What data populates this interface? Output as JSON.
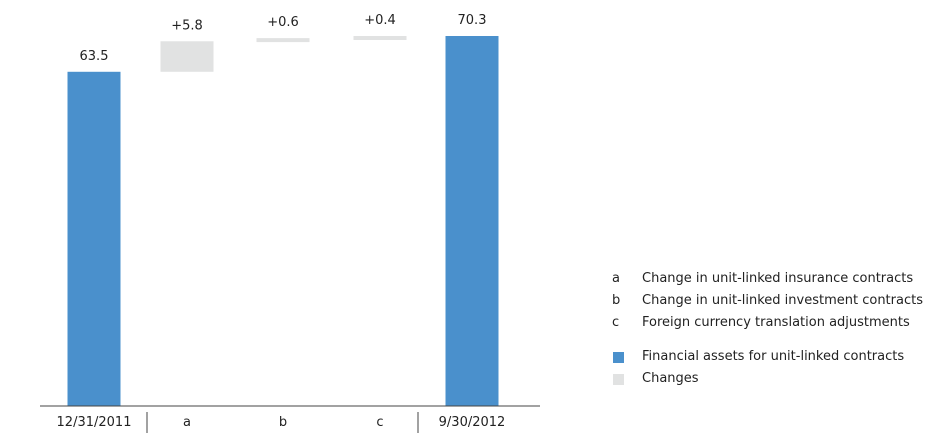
{
  "chart_data": {
    "type": "waterfall",
    "categories": [
      "12/31/2011",
      "a",
      "b",
      "c",
      "9/30/2012"
    ],
    "bars": [
      {
        "category": "12/31/2011",
        "kind": "total",
        "value": 63.5,
        "label": "63.5"
      },
      {
        "category": "a",
        "kind": "change",
        "value": 5.8,
        "label": "+5.8"
      },
      {
        "category": "b",
        "kind": "change",
        "value": 0.6,
        "label": "+0.6"
      },
      {
        "category": "c",
        "kind": "change",
        "value": 0.4,
        "label": "+0.4"
      },
      {
        "category": "9/30/2012",
        "kind": "total",
        "value": 70.3,
        "label": "70.3"
      }
    ],
    "ylim": [
      0,
      72
    ],
    "grid": false,
    "colors": {
      "total": "#4a90cc",
      "change": "#e1e2e2",
      "axis": "#444444"
    }
  },
  "legend": {
    "notes": [
      {
        "key": "a",
        "text": "Change in unit-linked insurance contracts"
      },
      {
        "key": "b",
        "text": "Change in unit-linked investment contracts"
      },
      {
        "key": "c",
        "text": "Foreign currency translation adjustments"
      }
    ],
    "series": [
      {
        "name": "Financial assets for unit-linked contracts",
        "color": "#4a90cc"
      },
      {
        "name": "Changes",
        "color": "#e1e2e2"
      }
    ]
  }
}
